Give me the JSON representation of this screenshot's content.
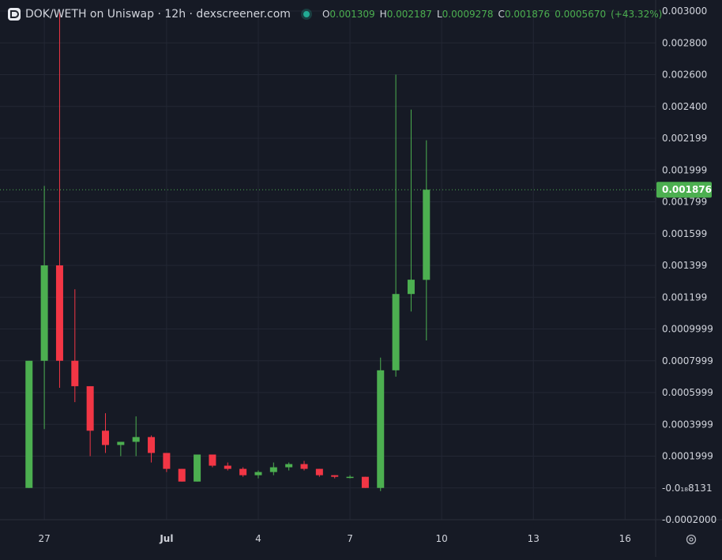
{
  "legend": {
    "title": "DOK/WETH on Uniswap · 12h · dexscreener.com",
    "open_label": "O",
    "open": "0.001309",
    "high_label": "H",
    "high": "0.002187",
    "low_label": "L",
    "low": "0.0009278",
    "close_label": "C",
    "close": "0.001876",
    "change": "0.0005670",
    "change_pct": "(+43.32%)"
  },
  "colors": {
    "background": "#161a25",
    "grid": "#232734",
    "up": "#4caf50",
    "down": "#f23645",
    "axis_text": "#d1d4dc",
    "status": "#22ab94"
  },
  "icons": {
    "brand": "dexscreener-logo-icon",
    "status": "live-status-icon",
    "settings": "gear-icon"
  },
  "chart_data": {
    "type": "candlestick",
    "title": "DOK/WETH on Uniswap · 12h · dexscreener.com",
    "interval": "12h",
    "price_axis_labels": [
      "0.003000",
      "0.002800",
      "0.002600",
      "0.002400",
      "0.002199",
      "0.001999",
      "0.001799",
      "0.001599",
      "0.001399",
      "0.001199",
      "0.0009999",
      "0.0007999",
      "0.0005999",
      "0.0003999",
      "0.0001999",
      "-0.0₁₈8131",
      "-0.0002000"
    ],
    "price_axis_values": [
      0.003,
      0.0028,
      0.0026,
      0.0024,
      0.0022,
      0.002,
      0.0018,
      0.0016,
      0.0014,
      0.0012,
      0.001,
      0.0008,
      0.0006,
      0.0004,
      0.0002,
      0.0,
      -0.0002
    ],
    "ylim": [
      -0.0002,
      0.003
    ],
    "time_axis": [
      "27",
      "Jul",
      "4",
      "7",
      "10",
      "13",
      "16"
    ],
    "time_axis_index": [
      1,
      9,
      15,
      21,
      27,
      33,
      39
    ],
    "xlim": [
      -1.9,
      41.0
    ],
    "last_price": 0.001876,
    "last_price_label": "0.001876",
    "grid": true,
    "candles": [
      {
        "o": 0.0,
        "h": 0.0008,
        "l": 0.0,
        "c": 0.0008
      },
      {
        "o": 0.0008,
        "h": 0.0019,
        "l": 0.00037,
        "c": 0.0014
      },
      {
        "o": 0.0014,
        "h": 0.003,
        "l": 0.00063,
        "c": 0.0008
      },
      {
        "o": 0.0008,
        "h": 0.00125,
        "l": 0.00054,
        "c": 0.00064
      },
      {
        "o": 0.00064,
        "h": 0.00064,
        "l": 0.0002,
        "c": 0.00036
      },
      {
        "o": 0.00036,
        "h": 0.00047,
        "l": 0.00022,
        "c": 0.00027
      },
      {
        "o": 0.00027,
        "h": 0.00027,
        "l": 0.0002,
        "c": 0.00029
      },
      {
        "o": 0.00029,
        "h": 0.00045,
        "l": 0.0002,
        "c": 0.00032
      },
      {
        "o": 0.00032,
        "h": 0.00033,
        "l": 0.00016,
        "c": 0.00022
      },
      {
        "o": 0.00022,
        "h": 0.00022,
        "l": 0.0001,
        "c": 0.00012
      },
      {
        "o": 0.00012,
        "h": 0.00012,
        "l": 4e-05,
        "c": 4e-05
      },
      {
        "o": 4e-05,
        "h": 0.00021,
        "l": 4e-05,
        "c": 0.00021
      },
      {
        "o": 0.00021,
        "h": 0.00021,
        "l": 0.00013,
        "c": 0.00014
      },
      {
        "o": 0.00014,
        "h": 0.00016,
        "l": 0.00011,
        "c": 0.00012
      },
      {
        "o": 0.00012,
        "h": 0.00013,
        "l": 7e-05,
        "c": 8e-05
      },
      {
        "o": 8e-05,
        "h": 0.00011,
        "l": 6e-05,
        "c": 0.0001
      },
      {
        "o": 0.0001,
        "h": 0.00016,
        "l": 8e-05,
        "c": 0.00013
      },
      {
        "o": 0.00013,
        "h": 0.00016,
        "l": 0.00011,
        "c": 0.00015
      },
      {
        "o": 0.00015,
        "h": 0.00017,
        "l": 0.00011,
        "c": 0.00012
      },
      {
        "o": 0.00012,
        "h": 0.00012,
        "l": 7e-05,
        "c": 8e-05
      },
      {
        "o": 8e-05,
        "h": 8e-05,
        "l": 6e-05,
        "c": 7e-05
      },
      {
        "o": 7e-05,
        "h": 8e-05,
        "l": 6e-05,
        "c": 7e-05
      },
      {
        "o": 7e-05,
        "h": 7e-05,
        "l": 0.0,
        "c": 0.0
      },
      {
        "o": 0.0,
        "h": 0.00082,
        "l": -2e-05,
        "c": 0.00074
      },
      {
        "o": 0.00074,
        "h": 0.0026,
        "l": 0.0007,
        "c": 0.00122
      },
      {
        "o": 0.00122,
        "h": 0.00238,
        "l": 0.00111,
        "c": 0.00131
      },
      {
        "o": 0.001309,
        "h": 0.002187,
        "l": 0.0009278,
        "c": 0.001876
      }
    ]
  }
}
